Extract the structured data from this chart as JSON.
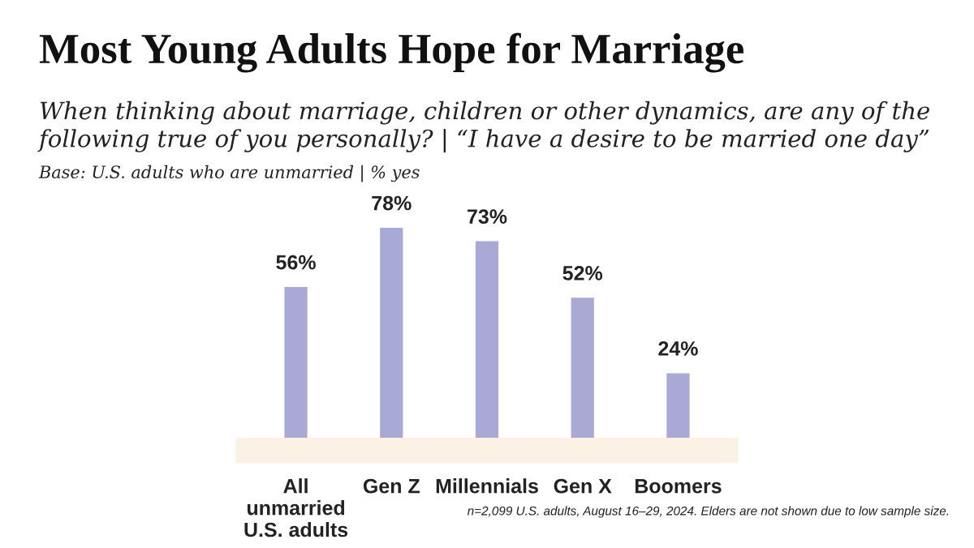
{
  "chart_data": {
    "type": "bar",
    "title": "Most Young Adults Hope for Marriage",
    "subtitle": "When thinking about marriage, children or other dynamics, are any of the following true of you personally? | “I have a desire to be married one day”",
    "annotations": [
      "Base: U.S. adults who are unmarried | % yes",
      "n=2,099 U.S. adults, August 16–29, 2024. Elders are not shown due to low sample size."
    ],
    "categories": [
      "All\nunmarried\nU.S. adults",
      "Gen Z",
      "Millennials",
      "Gen X",
      "Boomers"
    ],
    "values": [
      56,
      78,
      73,
      52,
      24
    ],
    "value_labels": [
      "56%",
      "78%",
      "73%",
      "52%",
      "24%"
    ],
    "color": "#a9a9d6"
  }
}
